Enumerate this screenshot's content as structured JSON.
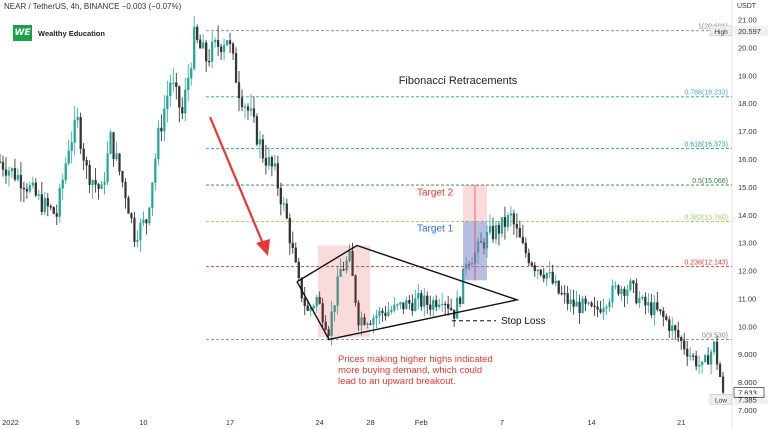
{
  "header": {
    "symbol": "NEAR / TetherUS, 4h, BINANCE",
    "change": "−0.003 (−0.07%)",
    "currency": "USDT"
  },
  "brand": {
    "logo": "WE",
    "name": "Wealthy Education"
  },
  "colors": {
    "up": "#26a69a",
    "down": "#222222",
    "candle_body": "#333333",
    "red": "#e53935",
    "blue": "#2f6fd6",
    "fib_green": "#2e7d32",
    "fib_gray": "#888888",
    "fib_blue": "#4aa3d9",
    "fib_teal": "#26a69a",
    "fib_yellow": "#9ccc65"
  },
  "chart_data": {
    "type": "candlestick",
    "ylim": [
      7.0,
      21.2
    ],
    "y_ticks": [
      7.0,
      8.0,
      9.0,
      10.0,
      11.0,
      12.0,
      13.0,
      14.0,
      15.0,
      16.0,
      17.0,
      18.0,
      19.0,
      20.0,
      21.0
    ],
    "x_ticks": [
      {
        "label": "2022",
        "slot": 3.5
      },
      {
        "label": "5",
        "slot": 26
      },
      {
        "label": "10",
        "slot": 48
      },
      {
        "label": "17",
        "slot": 77
      },
      {
        "label": "24",
        "slot": 107
      },
      {
        "label": "28",
        "slot": 124
      },
      {
        "label": "Feb",
        "slot": 141
      },
      {
        "label": "7",
        "slot": 168
      },
      {
        "label": "14",
        "slot": 198
      },
      {
        "label": "21",
        "slot": 228
      }
    ],
    "price_path": [
      [
        0,
        15.9
      ],
      [
        8,
        15.2
      ],
      [
        14,
        14.4
      ],
      [
        19,
        14.0
      ],
      [
        23,
        16.5
      ],
      [
        26,
        17.3
      ],
      [
        29,
        15.6
      ],
      [
        34,
        14.8
      ],
      [
        37,
        16.7
      ],
      [
        42,
        14.8
      ],
      [
        45,
        13.3
      ],
      [
        49,
        13.8
      ],
      [
        53,
        16.8
      ],
      [
        57,
        18.8
      ],
      [
        61,
        17.6
      ],
      [
        65,
        20.3
      ],
      [
        69,
        19.6
      ],
      [
        73,
        20.1
      ],
      [
        76,
        20.4
      ],
      [
        80,
        18.5
      ],
      [
        84,
        17.5
      ],
      [
        88,
        16.2
      ],
      [
        92,
        15.5
      ],
      [
        96,
        13.8
      ],
      [
        100,
        11.5
      ],
      [
        103,
        10.5
      ],
      [
        106,
        11.0
      ],
      [
        110,
        9.9
      ],
      [
        114,
        12.0
      ],
      [
        117,
        12.4
      ],
      [
        120,
        10.3
      ],
      [
        124,
        10.3
      ],
      [
        128,
        10.5
      ],
      [
        132,
        10.6
      ],
      [
        136,
        10.8
      ],
      [
        140,
        10.9
      ],
      [
        144,
        10.8
      ],
      [
        148,
        11.1
      ],
      [
        152,
        10.5
      ],
      [
        154,
        11.1
      ],
      [
        156,
        12.4
      ],
      [
        159,
        12.6
      ],
      [
        163,
        13.2
      ],
      [
        167,
        13.5
      ],
      [
        171,
        13.9
      ],
      [
        175,
        12.8
      ],
      [
        179,
        12.2
      ],
      [
        183,
        11.9
      ],
      [
        187,
        11.2
      ],
      [
        191,
        10.8
      ],
      [
        195,
        10.7
      ],
      [
        199,
        10.5
      ],
      [
        203,
        11.0
      ],
      [
        207,
        11.4
      ],
      [
        211,
        11.4
      ],
      [
        215,
        10.8
      ],
      [
        219,
        10.6
      ],
      [
        223,
        10.2
      ],
      [
        227,
        9.6
      ],
      [
        231,
        9.0
      ],
      [
        235,
        8.5
      ],
      [
        239,
        9.3
      ],
      [
        241,
        8.2
      ],
      [
        242,
        7.63
      ]
    ],
    "last_price": "7.633",
    "high_price": "20.597",
    "high_label": "High",
    "low_price": "7.385",
    "low_label": "Low",
    "fibonacci": {
      "title": "Fibonacci Retracements",
      "levels": [
        {
          "label": "1(20.601)",
          "value": 20.601,
          "color": "#888888"
        },
        {
          "label": "0.786(18.233)",
          "value": 18.233,
          "color": "#4aa3d9"
        },
        {
          "label": "0.618(16.373)",
          "value": 16.373,
          "color": "#26a69a"
        },
        {
          "label": "0.5(15.066)",
          "value": 15.066,
          "color": "#2e7d32"
        },
        {
          "label": "0.382(13.760)",
          "value": 13.76,
          "color": "#9ccc65"
        },
        {
          "label": "0.236(12.143)",
          "value": 12.143,
          "color": "#e53935"
        },
        {
          "label": "0(9.530)",
          "value": 9.53,
          "color": "#888888"
        }
      ]
    },
    "annotations": {
      "target2": "Target 2",
      "target1": "Target 1",
      "stop_loss": "Stop Loss",
      "note_lines": [
        "Prices making higher highs indicated",
        "more buying demand, which could",
        "lead to an upward breakout."
      ]
    }
  }
}
